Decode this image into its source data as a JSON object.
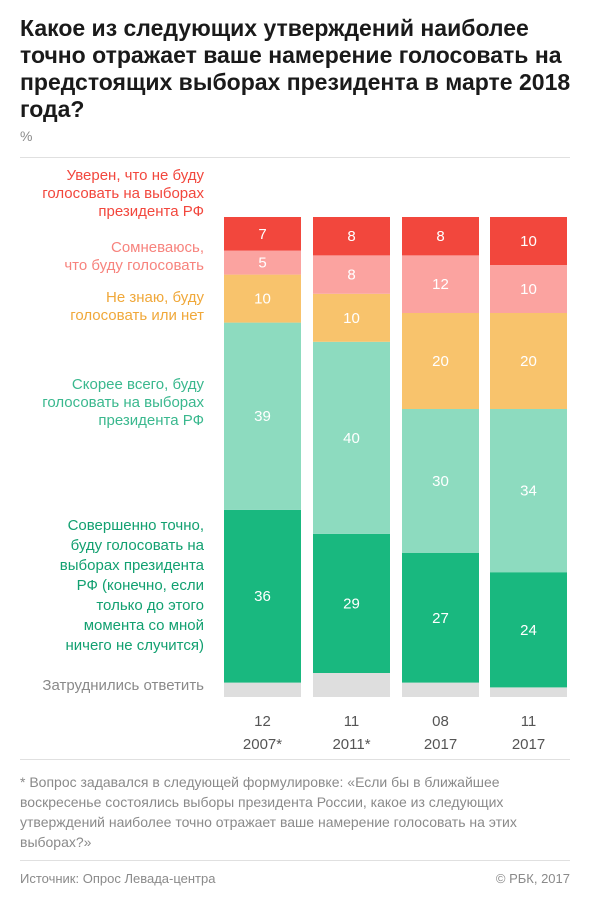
{
  "title": "Какое из следующих утверждений наиболее точно отражает ваше намерение голосовать на предстоящих выборах президента в марте 2018 года?",
  "unit": "%",
  "footnote": "* Вопрос задавался в следующей формулировке: «Если бы в ближайшее воскресенье состоялись выборы президента России, какое из следующих утверждений наиболее точно отражает ваше намерение голосовать на этих выборах?»",
  "source": "Источник: Опрос Левада-центра",
  "copyright": "© РБК, 2017",
  "chart_data": {
    "type": "bar",
    "stacked": true,
    "unit": "%",
    "categories": [
      [
        "12",
        "2007*"
      ],
      [
        "11",
        "2011*"
      ],
      [
        "08",
        "2017"
      ],
      [
        "11",
        "2017"
      ]
    ],
    "series": [
      {
        "name": "Уверен, что не буду голосовать на выборах президента РФ",
        "label_lines": [
          "Уверен, что не буду",
          "голосовать на выборах",
          "президента РФ"
        ],
        "color": "#f2473d",
        "label_color": "#f2473d",
        "values": [
          7,
          8,
          8,
          10
        ]
      },
      {
        "name": "Сомневаюсь, что буду голосовать",
        "label_lines": [
          "Сомневаюсь,",
          "что буду голосовать"
        ],
        "color": "#fba3a0",
        "label_color": "#f7837d",
        "values": [
          5,
          8,
          12,
          10
        ]
      },
      {
        "name": "Не знаю, буду голосовать или нет",
        "label_lines": [
          "Не знаю, буду",
          "голосовать или нет"
        ],
        "color": "#f8c36c",
        "label_color": "#f0a83a",
        "values": [
          10,
          10,
          20,
          20
        ]
      },
      {
        "name": "Скорее всего, буду голосовать на выборах президента РФ",
        "label_lines": [
          "Скорее всего, буду",
          "голосовать на выборах",
          "президента РФ"
        ],
        "color": "#8ddbbf",
        "label_color": "#3ab88e",
        "values": [
          39,
          40,
          30,
          34
        ]
      },
      {
        "name": "Совершенно точно, буду голосовать на выборах президента РФ (конечно, если только до этого момента со мной ничего не случится)",
        "label_lines": [
          "Совершенно точно,",
          "буду голосовать на",
          "выборах президента",
          "РФ (конечно, если",
          "только до этого",
          "момента со мной",
          "ничего не случится)"
        ],
        "color": "#19b87f",
        "label_color": "#12a070",
        "values": [
          36,
          29,
          27,
          24
        ]
      },
      {
        "name": "Затруднились ответить",
        "label_lines": [
          "Затруднились ответить"
        ],
        "color": "#dedede",
        "label_color": "#8a8a8a",
        "values": [
          3,
          5,
          3,
          2
        ],
        "show_values": false
      }
    ]
  }
}
